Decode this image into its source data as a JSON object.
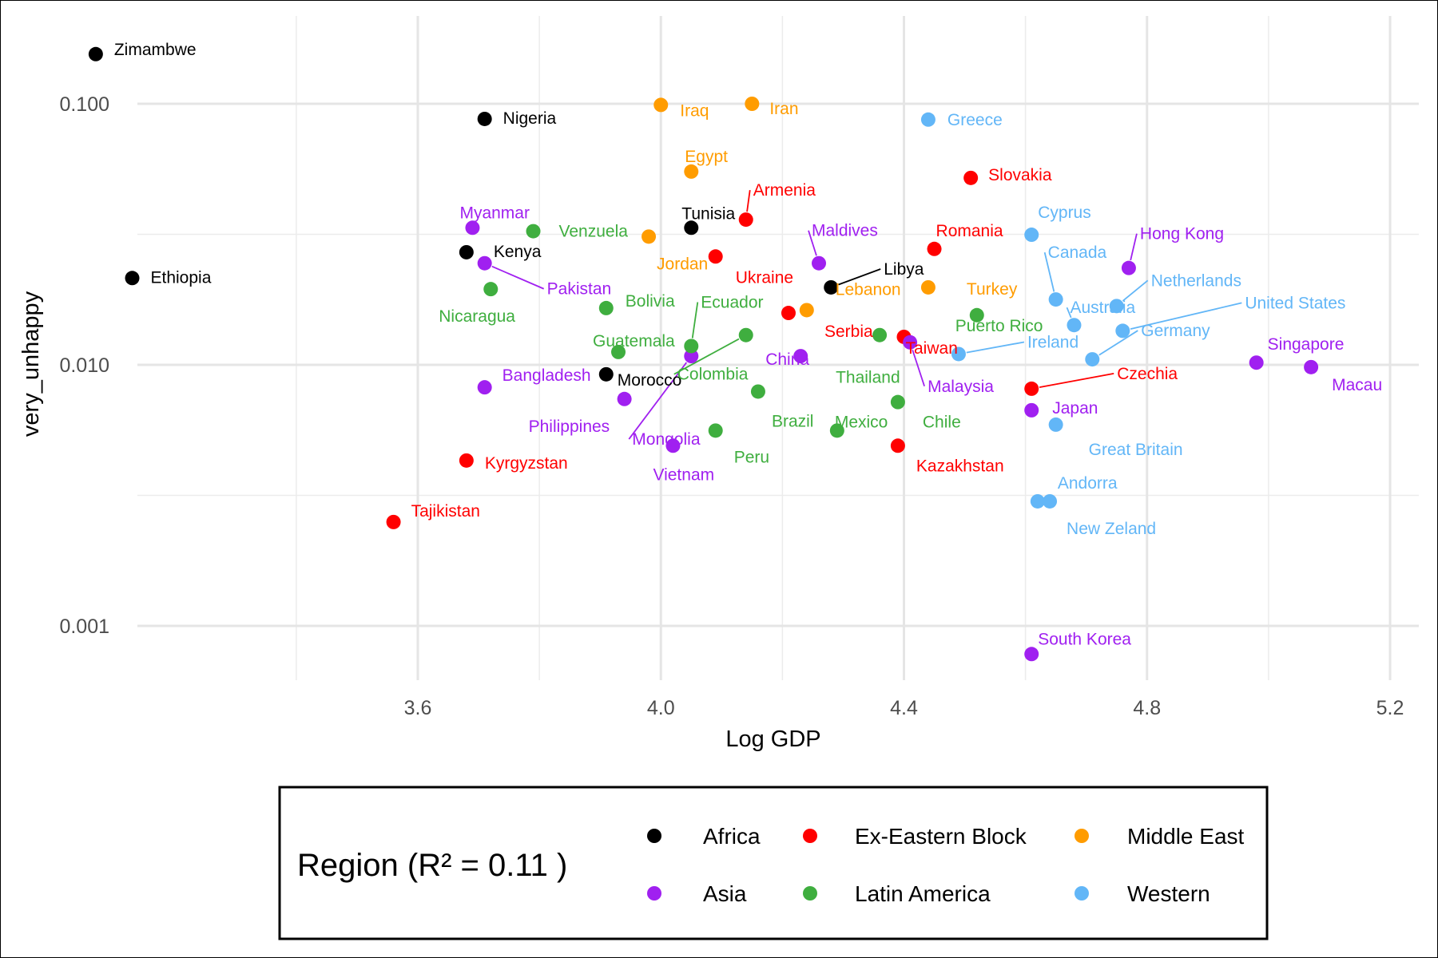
{
  "chart_data": {
    "type": "scatter",
    "xlabel": "Log GDP",
    "ylabel": "very_unhappy",
    "xlim": [
      3.0,
      5.25
    ],
    "ylim": [
      0.00065,
      0.2
    ],
    "ylog": true,
    "grid": true,
    "x_ticks": [
      {
        "value": 3.6,
        "label": "3.6"
      },
      {
        "value": 4.0,
        "label": "4.0"
      },
      {
        "value": 4.4,
        "label": "4.4"
      },
      {
        "value": 4.8,
        "label": "4.8"
      },
      {
        "value": 5.2,
        "label": "5.2"
      }
    ],
    "y_ticks": [
      {
        "value": 0.001,
        "label": "0.001"
      },
      {
        "value": 0.01,
        "label": "0.010"
      },
      {
        "value": 0.1,
        "label": "0.100"
      }
    ],
    "legend": {
      "title": "Region (R² = 0.11 )",
      "placement": "bottom",
      "entries": [
        {
          "name": "Africa",
          "color": "#000000"
        },
        {
          "name": "Ex-Eastern Block",
          "color": "#ff0000"
        },
        {
          "name": "Middle East",
          "color": "#ff9c00"
        },
        {
          "name": "Asia",
          "color": "#a020f0"
        },
        {
          "name": "Latin America",
          "color": "#3fae3f"
        },
        {
          "name": "Western",
          "color": "#62b6f7"
        }
      ]
    },
    "points": [
      {
        "label": "Zimambwe",
        "region": "Africa",
        "x": 3.07,
        "y": 0.155
      },
      {
        "label": "Ethiopia",
        "region": "Africa",
        "x": 3.13,
        "y": 0.0215
      },
      {
        "label": "Nigeria",
        "region": "Africa",
        "x": 3.71,
        "y": 0.0875
      },
      {
        "label": "Kenya",
        "region": "Africa",
        "x": 3.68,
        "y": 0.027
      },
      {
        "label": "Tunisia",
        "region": "Africa",
        "x": 4.05,
        "y": 0.0335
      },
      {
        "label": "Morocco",
        "region": "Africa",
        "x": 3.91,
        "y": 0.0092
      },
      {
        "label": "Libya",
        "region": "Africa",
        "x": 4.28,
        "y": 0.0198
      },
      {
        "label": "Armenia",
        "region": "Ex-Eastern Block",
        "x": 4.14,
        "y": 0.036
      },
      {
        "label": "Ukraine",
        "region": "Ex-Eastern Block",
        "x": 4.09,
        "y": 0.026
      },
      {
        "label": "Serbia",
        "region": "Ex-Eastern Block",
        "x": 4.21,
        "y": 0.0158
      },
      {
        "label": "Slovakia",
        "region": "Ex-Eastern Block",
        "x": 4.51,
        "y": 0.052
      },
      {
        "label": "Romania",
        "region": "Ex-Eastern Block",
        "x": 4.45,
        "y": 0.0278
      },
      {
        "label": "Taiwan",
        "region": "Ex-Eastern Block",
        "x": 4.4,
        "y": 0.0128
      },
      {
        "label": "Czechia",
        "region": "Ex-Eastern Block",
        "x": 4.61,
        "y": 0.0081
      },
      {
        "label": "Kazakhstan",
        "region": "Ex-Eastern Block",
        "x": 4.39,
        "y": 0.0049
      },
      {
        "label": "Kyrgyzstan",
        "region": "Ex-Eastern Block",
        "x": 3.68,
        "y": 0.0043
      },
      {
        "label": "Tajikistan",
        "region": "Ex-Eastern Block",
        "x": 3.56,
        "y": 0.0025
      },
      {
        "label": "Iraq",
        "region": "Middle East",
        "x": 4.0,
        "y": 0.099
      },
      {
        "label": "Iran",
        "region": "Middle East",
        "x": 4.15,
        "y": 0.1
      },
      {
        "label": "Egypt",
        "region": "Middle East",
        "x": 4.05,
        "y": 0.055
      },
      {
        "label": "Jordan",
        "region": "Middle East",
        "x": 3.98,
        "y": 0.031
      },
      {
        "label": "Lebanon",
        "region": "Middle East",
        "x": 4.24,
        "y": 0.0162
      },
      {
        "label": "Turkey",
        "region": "Middle East",
        "x": 4.44,
        "y": 0.0198
      },
      {
        "label": "Myanmar",
        "region": "Asia",
        "x": 3.69,
        "y": 0.0335
      },
      {
        "label": "Pakistan",
        "region": "Asia",
        "x": 3.71,
        "y": 0.0245
      },
      {
        "label": "Bangladesh",
        "region": "Asia",
        "x": 3.71,
        "y": 0.0082
      },
      {
        "label": "Philippines",
        "region": "Asia",
        "x": 3.94,
        "y": 0.0074
      },
      {
        "label": "Mongolia",
        "region": "Asia",
        "x": 4.05,
        "y": 0.0108
      },
      {
        "label": "Vietnam",
        "region": "Asia",
        "x": 4.02,
        "y": 0.0049
      },
      {
        "label": "China",
        "region": "Asia",
        "x": 4.23,
        "y": 0.0108
      },
      {
        "label": "Maldives",
        "region": "Asia",
        "x": 4.26,
        "y": 0.0245
      },
      {
        "label": "Malaysia",
        "region": "Asia",
        "x": 4.41,
        "y": 0.0122
      },
      {
        "label": "Japan",
        "region": "Asia",
        "x": 4.61,
        "y": 0.0067
      },
      {
        "label": "Hong Kong",
        "region": "Asia",
        "x": 4.77,
        "y": 0.0235
      },
      {
        "label": "Singapore",
        "region": "Asia",
        "x": 4.98,
        "y": 0.0102
      },
      {
        "label": "Macau",
        "region": "Asia",
        "x": 5.07,
        "y": 0.0098
      },
      {
        "label": "South Korea",
        "region": "Asia",
        "x": 4.61,
        "y": 0.00078
      },
      {
        "label": "Venzuela",
        "region": "Latin America",
        "x": 3.79,
        "y": 0.0325
      },
      {
        "label": "Nicaragua",
        "region": "Latin America",
        "x": 3.72,
        "y": 0.0195
      },
      {
        "label": "Bolivia",
        "region": "Latin America",
        "x": 3.91,
        "y": 0.0165
      },
      {
        "label": "Guatemala",
        "region": "Latin America",
        "x": 3.93,
        "y": 0.0112
      },
      {
        "label": "Ecuador",
        "region": "Latin America",
        "x": 4.05,
        "y": 0.0118
      },
      {
        "label": "Colombia",
        "region": "Latin America",
        "x": 4.14,
        "y": 0.013
      },
      {
        "label": "Brazil",
        "region": "Latin America",
        "x": 4.16,
        "y": 0.0079
      },
      {
        "label": "Peru",
        "region": "Latin America",
        "x": 4.09,
        "y": 0.0056
      },
      {
        "label": "Mexico",
        "region": "Latin America",
        "x": 4.29,
        "y": 0.0056
      },
      {
        "label": "Chile",
        "region": "Latin America",
        "x": 4.39,
        "y": 0.0072
      },
      {
        "label": "Thailand",
        "region": "Latin America",
        "x": 4.36,
        "y": 0.013
      },
      {
        "label": "Puerto Rico",
        "region": "Latin America",
        "x": 4.52,
        "y": 0.0155
      },
      {
        "label": "Greece",
        "region": "Western",
        "x": 4.44,
        "y": 0.087
      },
      {
        "label": "Cyprus",
        "region": "Western",
        "x": 4.61,
        "y": 0.0315
      },
      {
        "label": "Canada",
        "region": "Western",
        "x": 4.65,
        "y": 0.0178
      },
      {
        "label": "Australia",
        "region": "Western",
        "x": 4.68,
        "y": 0.0142
      },
      {
        "label": "Netherlands",
        "region": "Western",
        "x": 4.75,
        "y": 0.0168
      },
      {
        "label": "United States",
        "region": "Western",
        "x": 4.76,
        "y": 0.0135
      },
      {
        "label": "Germany",
        "region": "Western",
        "x": 4.71,
        "y": 0.0105
      },
      {
        "label": "Ireland",
        "region": "Western",
        "x": 4.49,
        "y": 0.011
      },
      {
        "label": "Great Britain",
        "region": "Western",
        "x": 4.65,
        "y": 0.0059
      },
      {
        "label": "Andorra",
        "region": "Western",
        "x": 4.62,
        "y": 0.003
      },
      {
        "label": "New Zeland",
        "region": "Western",
        "x": 4.64,
        "y": 0.003
      }
    ]
  }
}
